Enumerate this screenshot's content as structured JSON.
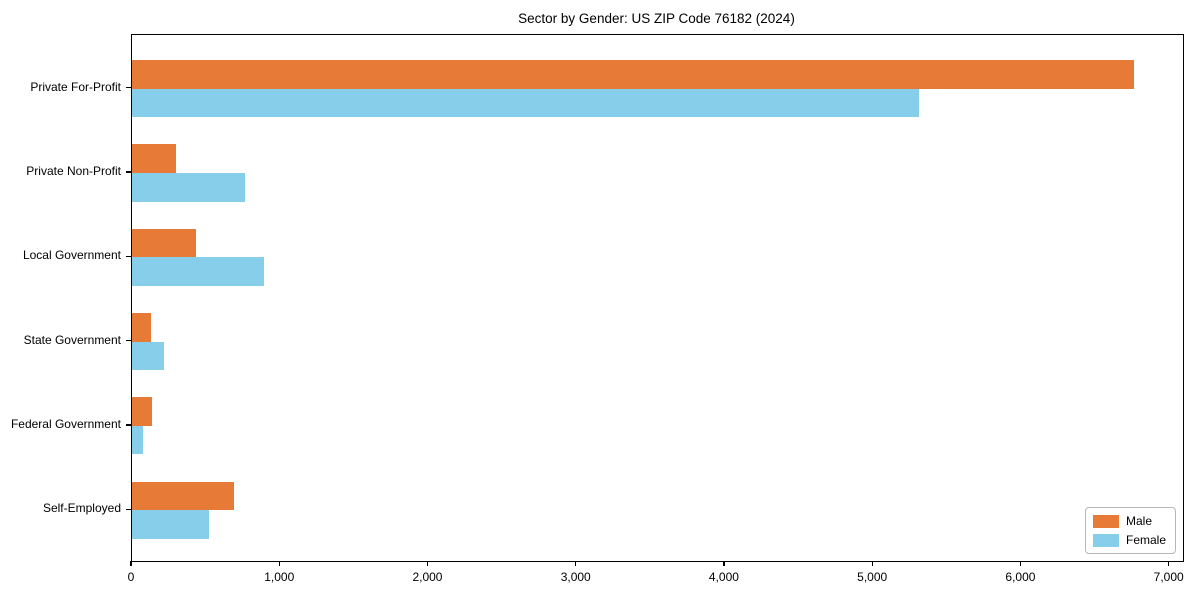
{
  "chart_data": {
    "type": "bar",
    "orientation": "horizontal",
    "title": "Sector by Gender: US ZIP Code 76182 (2024)",
    "xlabel": "",
    "ylabel": "",
    "categories": [
      "Private For-Profit",
      "Private Non-Profit",
      "Local Government",
      "State Government",
      "Federal Government",
      "Self-Employed"
    ],
    "series": [
      {
        "name": "Male",
        "color": "#E87A38",
        "values": [
          6760,
          300,
          430,
          130,
          135,
          690
        ]
      },
      {
        "name": "Female",
        "color": "#87CEEB",
        "values": [
          5310,
          760,
          890,
          215,
          75,
          520
        ]
      }
    ],
    "xlim": [
      0,
      7090
    ],
    "xticks": [
      0,
      1000,
      2000,
      3000,
      4000,
      5000,
      6000,
      7000
    ],
    "xtick_labels": [
      "0",
      "1,000",
      "2,000",
      "3,000",
      "4,000",
      "5,000",
      "6,000",
      "7,000"
    ],
    "grid": false,
    "legend_position": "lower right",
    "frame_color": "#000000",
    "background_color": "#FFFFFF"
  }
}
